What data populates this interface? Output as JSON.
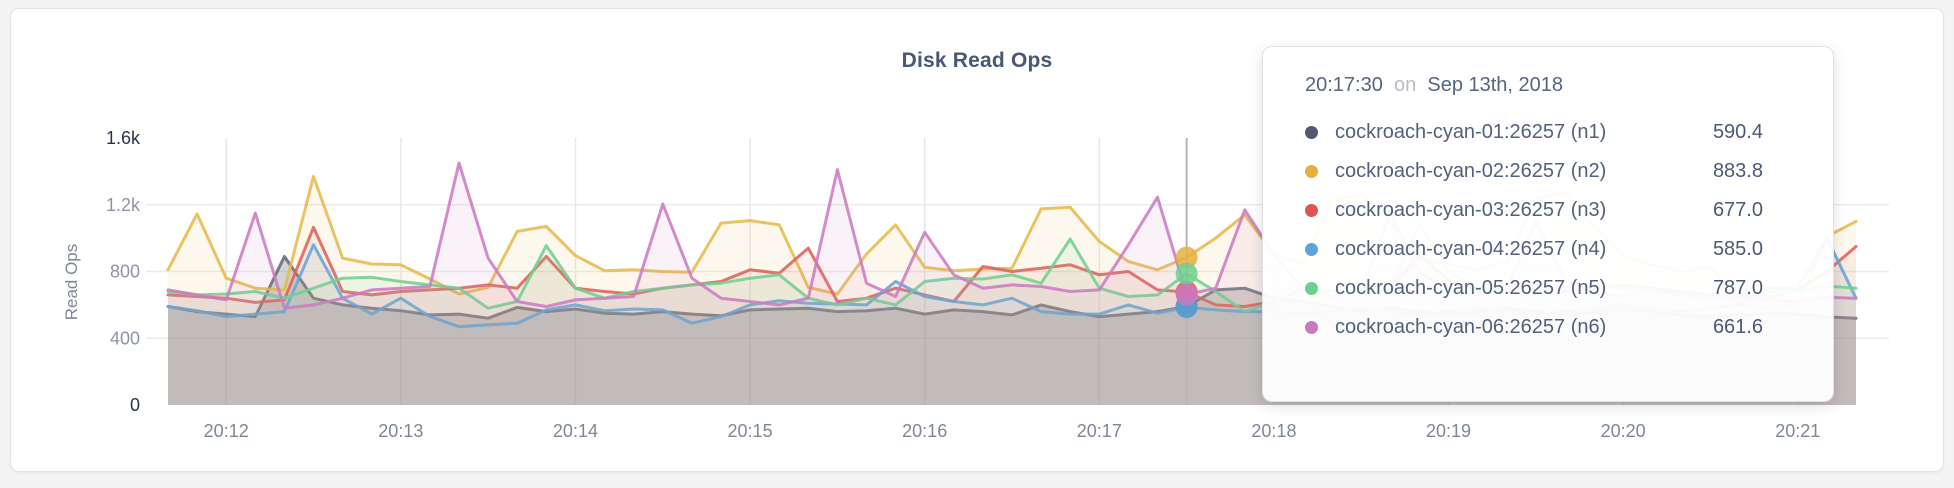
{
  "page": {
    "background": "#f4f4f5"
  },
  "chart": {
    "title": "Disk Read Ops",
    "y_axis_label": "Read Ops"
  },
  "tooltip": {
    "time": "20:17:30",
    "preposition": "on",
    "date": "Sep 13th, 2018",
    "rows": [
      {
        "label": "cockroach-cyan-01:26257 (n1)",
        "value": "590.4",
        "color": "#51596f"
      },
      {
        "label": "cockroach-cyan-02:26257 (n2)",
        "value": "883.8",
        "color": "#e5b13e"
      },
      {
        "label": "cockroach-cyan-03:26257 (n3)",
        "value": "677.0",
        "color": "#dd574e"
      },
      {
        "label": "cockroach-cyan-04:26257 (n4)",
        "value": "585.0",
        "color": "#5da4dc"
      },
      {
        "label": "cockroach-cyan-05:26257 (n5)",
        "value": "787.0",
        "color": "#6fd08e"
      },
      {
        "label": "cockroach-cyan-06:26257 (n6)",
        "value": "661.6",
        "color": "#cb78c3"
      }
    ]
  },
  "chart_data": {
    "type": "line",
    "title": "Disk Read Ops",
    "xlabel": "",
    "ylabel": "Read Ops",
    "ylim": [
      0,
      1600
    ],
    "grid": true,
    "x_start": "20:11:40",
    "x_end": "20:21:20",
    "x_interval_seconds": 10,
    "x_ticks": [
      {
        "label": "20:12",
        "index": 2
      },
      {
        "label": "20:13",
        "index": 8
      },
      {
        "label": "20:14",
        "index": 14
      },
      {
        "label": "20:15",
        "index": 20
      },
      {
        "label": "20:16",
        "index": 26
      },
      {
        "label": "20:17",
        "index": 32
      },
      {
        "label": "20:18",
        "index": 38
      },
      {
        "label": "20:19",
        "index": 44
      },
      {
        "label": "20:20",
        "index": 50
      },
      {
        "label": "20:21",
        "index": 56
      }
    ],
    "y_ticks": [
      {
        "label": "1.6k",
        "value": 1600,
        "grid": false,
        "strong": true
      },
      {
        "label": "1.2k",
        "value": 1200,
        "grid": true,
        "strong": false
      },
      {
        "label": "800",
        "value": 800,
        "grid": true,
        "strong": false
      },
      {
        "label": "400",
        "value": 400,
        "grid": true,
        "strong": false
      },
      {
        "label": "0",
        "value": 0,
        "grid": false,
        "strong": true
      }
    ],
    "hover": {
      "index": 35,
      "time": "20:17:30"
    },
    "series": [
      {
        "name": "cockroach-cyan-01:26257 (n1)",
        "node": "n1",
        "color": "#646a7b",
        "dot_color": "#51596f",
        "fill": "#6b6a72",
        "fill_opacity": 0.3,
        "values": [
          590,
          560,
          545,
          530,
          890,
          640,
          600,
          580,
          565,
          540,
          545,
          520,
          585,
          560,
          575,
          550,
          545,
          560,
          545,
          535,
          570,
          575,
          580,
          560,
          565,
          580,
          545,
          570,
          560,
          540,
          600,
          560,
          530,
          545,
          560,
          590.4,
          690,
          700,
          640,
          620,
          590,
          560,
          580,
          560,
          540,
          560,
          580,
          560,
          540,
          560,
          580,
          560,
          540,
          530,
          540,
          550,
          545,
          528,
          520
        ]
      },
      {
        "name": "cockroach-cyan-02:26257 (n2)",
        "node": "n2",
        "color": "#e7ba4c",
        "dot_color": "#e5b13e",
        "fill": "#e7ba4c",
        "fill_opacity": 0.1,
        "values": [
          810,
          1145,
          760,
          700,
          690,
          1370,
          880,
          845,
          840,
          755,
          665,
          705,
          1040,
          1070,
          895,
          805,
          810,
          800,
          795,
          1090,
          1105,
          1080,
          705,
          665,
          905,
          1080,
          825,
          805,
          815,
          820,
          1175,
          1185,
          980,
          860,
          810,
          883.8,
          1000,
          1140,
          900,
          850,
          1230,
          1260,
          1100,
          880,
          840,
          810,
          860,
          1240,
          1270,
          1060,
          900,
          840,
          800,
          830,
          600,
          580,
          600,
          1010,
          1100
        ]
      },
      {
        "name": "cockroach-cyan-03:26257 (n3)",
        "node": "n3",
        "color": "#dd625a",
        "dot_color": "#dd574e",
        "fill": "#dd625a",
        "fill_opacity": 0.09,
        "values": [
          660,
          650,
          640,
          615,
          630,
          1065,
          680,
          660,
          680,
          690,
          700,
          720,
          700,
          890,
          700,
          680,
          665,
          700,
          720,
          740,
          810,
          790,
          940,
          620,
          640,
          700,
          660,
          620,
          830,
          800,
          820,
          840,
          780,
          800,
          690,
          677,
          600,
          590,
          620,
          700,
          680,
          660,
          700,
          900,
          750,
          680,
          700,
          720,
          680,
          700,
          720,
          700,
          680,
          660,
          650,
          640,
          690,
          800,
          950
        ]
      },
      {
        "name": "cockroach-cyan-04:26257 (n4)",
        "node": "n4",
        "color": "#63a5d8",
        "dot_color": "#5da4dc",
        "fill": "#63a5d8",
        "fill_opacity": 0.09,
        "values": [
          590,
          565,
          530,
          545,
          560,
          960,
          640,
          545,
          640,
          530,
          470,
          480,
          490,
          570,
          600,
          565,
          575,
          570,
          490,
          530,
          600,
          625,
          610,
          605,
          600,
          740,
          650,
          620,
          600,
          640,
          560,
          545,
          545,
          600,
          550,
          585,
          570,
          560,
          560,
          545,
          560,
          580,
          560,
          545,
          560,
          580,
          560,
          545,
          560,
          580,
          600,
          580,
          560,
          580,
          600,
          700,
          700,
          1000,
          640
        ]
      },
      {
        "name": "cockroach-cyan-05:26257 (n5)",
        "node": "n5",
        "color": "#72cf92",
        "dot_color": "#6fd08e",
        "fill": "#72cf92",
        "fill_opacity": 0.1,
        "values": [
          680,
          660,
          665,
          680,
          640,
          700,
          760,
          765,
          740,
          720,
          700,
          580,
          620,
          955,
          700,
          640,
          680,
          700,
          720,
          730,
          760,
          780,
          640,
          600,
          640,
          600,
          740,
          760,
          755,
          780,
          730,
          995,
          700,
          650,
          660,
          787,
          680,
          560,
          620,
          700,
          680,
          660,
          700,
          1090,
          800,
          700,
          680,
          660,
          700,
          720,
          700,
          680,
          660,
          640,
          660,
          680,
          680,
          713,
          700
        ]
      },
      {
        "name": "cockroach-cyan-06:26257 (n6)",
        "node": "n6",
        "color": "#cb7cc2",
        "dot_color": "#cb78c3",
        "fill": "#cb7cc2",
        "fill_opacity": 0.1,
        "values": [
          690,
          660,
          630,
          1150,
          580,
          600,
          640,
          690,
          700,
          710,
          1450,
          880,
          620,
          590,
          630,
          640,
          650,
          1205,
          760,
          640,
          620,
          600,
          640,
          1410,
          730,
          650,
          1035,
          780,
          700,
          720,
          710,
          680,
          690,
          960,
          1245,
          661.6,
          700,
          1170,
          900,
          700,
          650,
          680,
          1150,
          800,
          680,
          660,
          700,
          1100,
          750,
          680,
          650,
          700,
          680,
          660,
          640,
          630,
          620,
          645,
          640
        ]
      }
    ]
  }
}
